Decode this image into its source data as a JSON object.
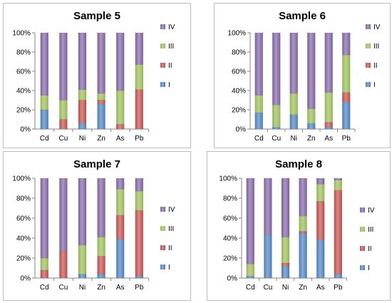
{
  "chart_data": [
    {
      "type": "bar",
      "stacked": true,
      "title": "Sample 5",
      "categories": [
        "Cd",
        "Cu",
        "Ni",
        "Zn",
        "As",
        "Pb"
      ],
      "ylim": [
        0,
        100
      ],
      "yticks": [
        "0%",
        "20%",
        "40%",
        "60%",
        "80%",
        "100%"
      ],
      "legend": "right",
      "grid": false,
      "series": [
        {
          "name": "I",
          "color": "#4a7ebb",
          "values": [
            20,
            0,
            6,
            26,
            0,
            0
          ]
        },
        {
          "name": "II",
          "color": "#be4b48",
          "values": [
            0,
            10,
            24,
            4,
            5,
            41
          ]
        },
        {
          "name": "III",
          "color": "#98b954",
          "values": [
            15,
            20,
            11,
            7,
            35,
            26
          ]
        },
        {
          "name": "IV",
          "color": "#7d60a0",
          "values": [
            65,
            70,
            59,
            63,
            60,
            33
          ]
        }
      ]
    },
    {
      "type": "bar",
      "stacked": true,
      "title": "Sample 6",
      "categories": [
        "Cd",
        "Cu",
        "Ni",
        "Zn",
        "As",
        "Pb"
      ],
      "ylim": [
        0,
        100
      ],
      "yticks": [
        "0%",
        "20%",
        "40%",
        "60%",
        "80%",
        "100%"
      ],
      "legend": "right",
      "grid": false,
      "series": [
        {
          "name": "I",
          "color": "#4a7ebb",
          "values": [
            17,
            2,
            15,
            6,
            2,
            28
          ]
        },
        {
          "name": "II",
          "color": "#be4b48",
          "values": [
            0,
            0,
            0,
            0,
            5,
            10
          ]
        },
        {
          "name": "III",
          "color": "#98b954",
          "values": [
            18,
            23,
            22,
            15,
            31,
            39
          ]
        },
        {
          "name": "IV",
          "color": "#7d60a0",
          "values": [
            65,
            75,
            63,
            79,
            62,
            23
          ]
        }
      ]
    },
    {
      "type": "bar",
      "stacked": true,
      "title": "Sample 7",
      "categories": [
        "Cd",
        "Cu",
        "Ni",
        "Zn",
        "As",
        "Pb"
      ],
      "ylim": [
        0,
        100
      ],
      "yticks": [
        "0%",
        "20%",
        "40%",
        "60%",
        "80%",
        "100%"
      ],
      "legend": "right",
      "grid": false,
      "series": [
        {
          "name": "I",
          "color": "#4a7ebb",
          "values": [
            0,
            0,
            4,
            4,
            39,
            2
          ]
        },
        {
          "name": "II",
          "color": "#be4b48",
          "values": [
            8,
            27,
            0,
            18,
            24,
            66
          ]
        },
        {
          "name": "III",
          "color": "#98b954",
          "values": [
            12,
            0,
            29,
            19,
            26,
            19
          ]
        },
        {
          "name": "IV",
          "color": "#7d60a0",
          "values": [
            80,
            73,
            67,
            59,
            11,
            13
          ]
        }
      ]
    },
    {
      "type": "bar",
      "stacked": true,
      "title": "Sample 8",
      "categories": [
        "Cd",
        "Cu",
        "Ni",
        "Zn",
        "As",
        "Pb"
      ],
      "ylim": [
        0,
        100
      ],
      "yticks": [
        "0%",
        "20%",
        "40%",
        "60%",
        "80%",
        "100%"
      ],
      "legend": "right",
      "grid": false,
      "series": [
        {
          "name": "I",
          "color": "#4a7ebb",
          "values": [
            2,
            43,
            12,
            45,
            38,
            4
          ]
        },
        {
          "name": "II",
          "color": "#be4b48",
          "values": [
            0,
            0,
            3,
            2,
            39,
            84
          ]
        },
        {
          "name": "III",
          "color": "#98b954",
          "values": [
            12,
            0,
            26,
            15,
            17,
            10
          ]
        },
        {
          "name": "IV",
          "color": "#7d60a0",
          "values": [
            86,
            57,
            59,
            38,
            6,
            2
          ]
        }
      ]
    }
  ]
}
